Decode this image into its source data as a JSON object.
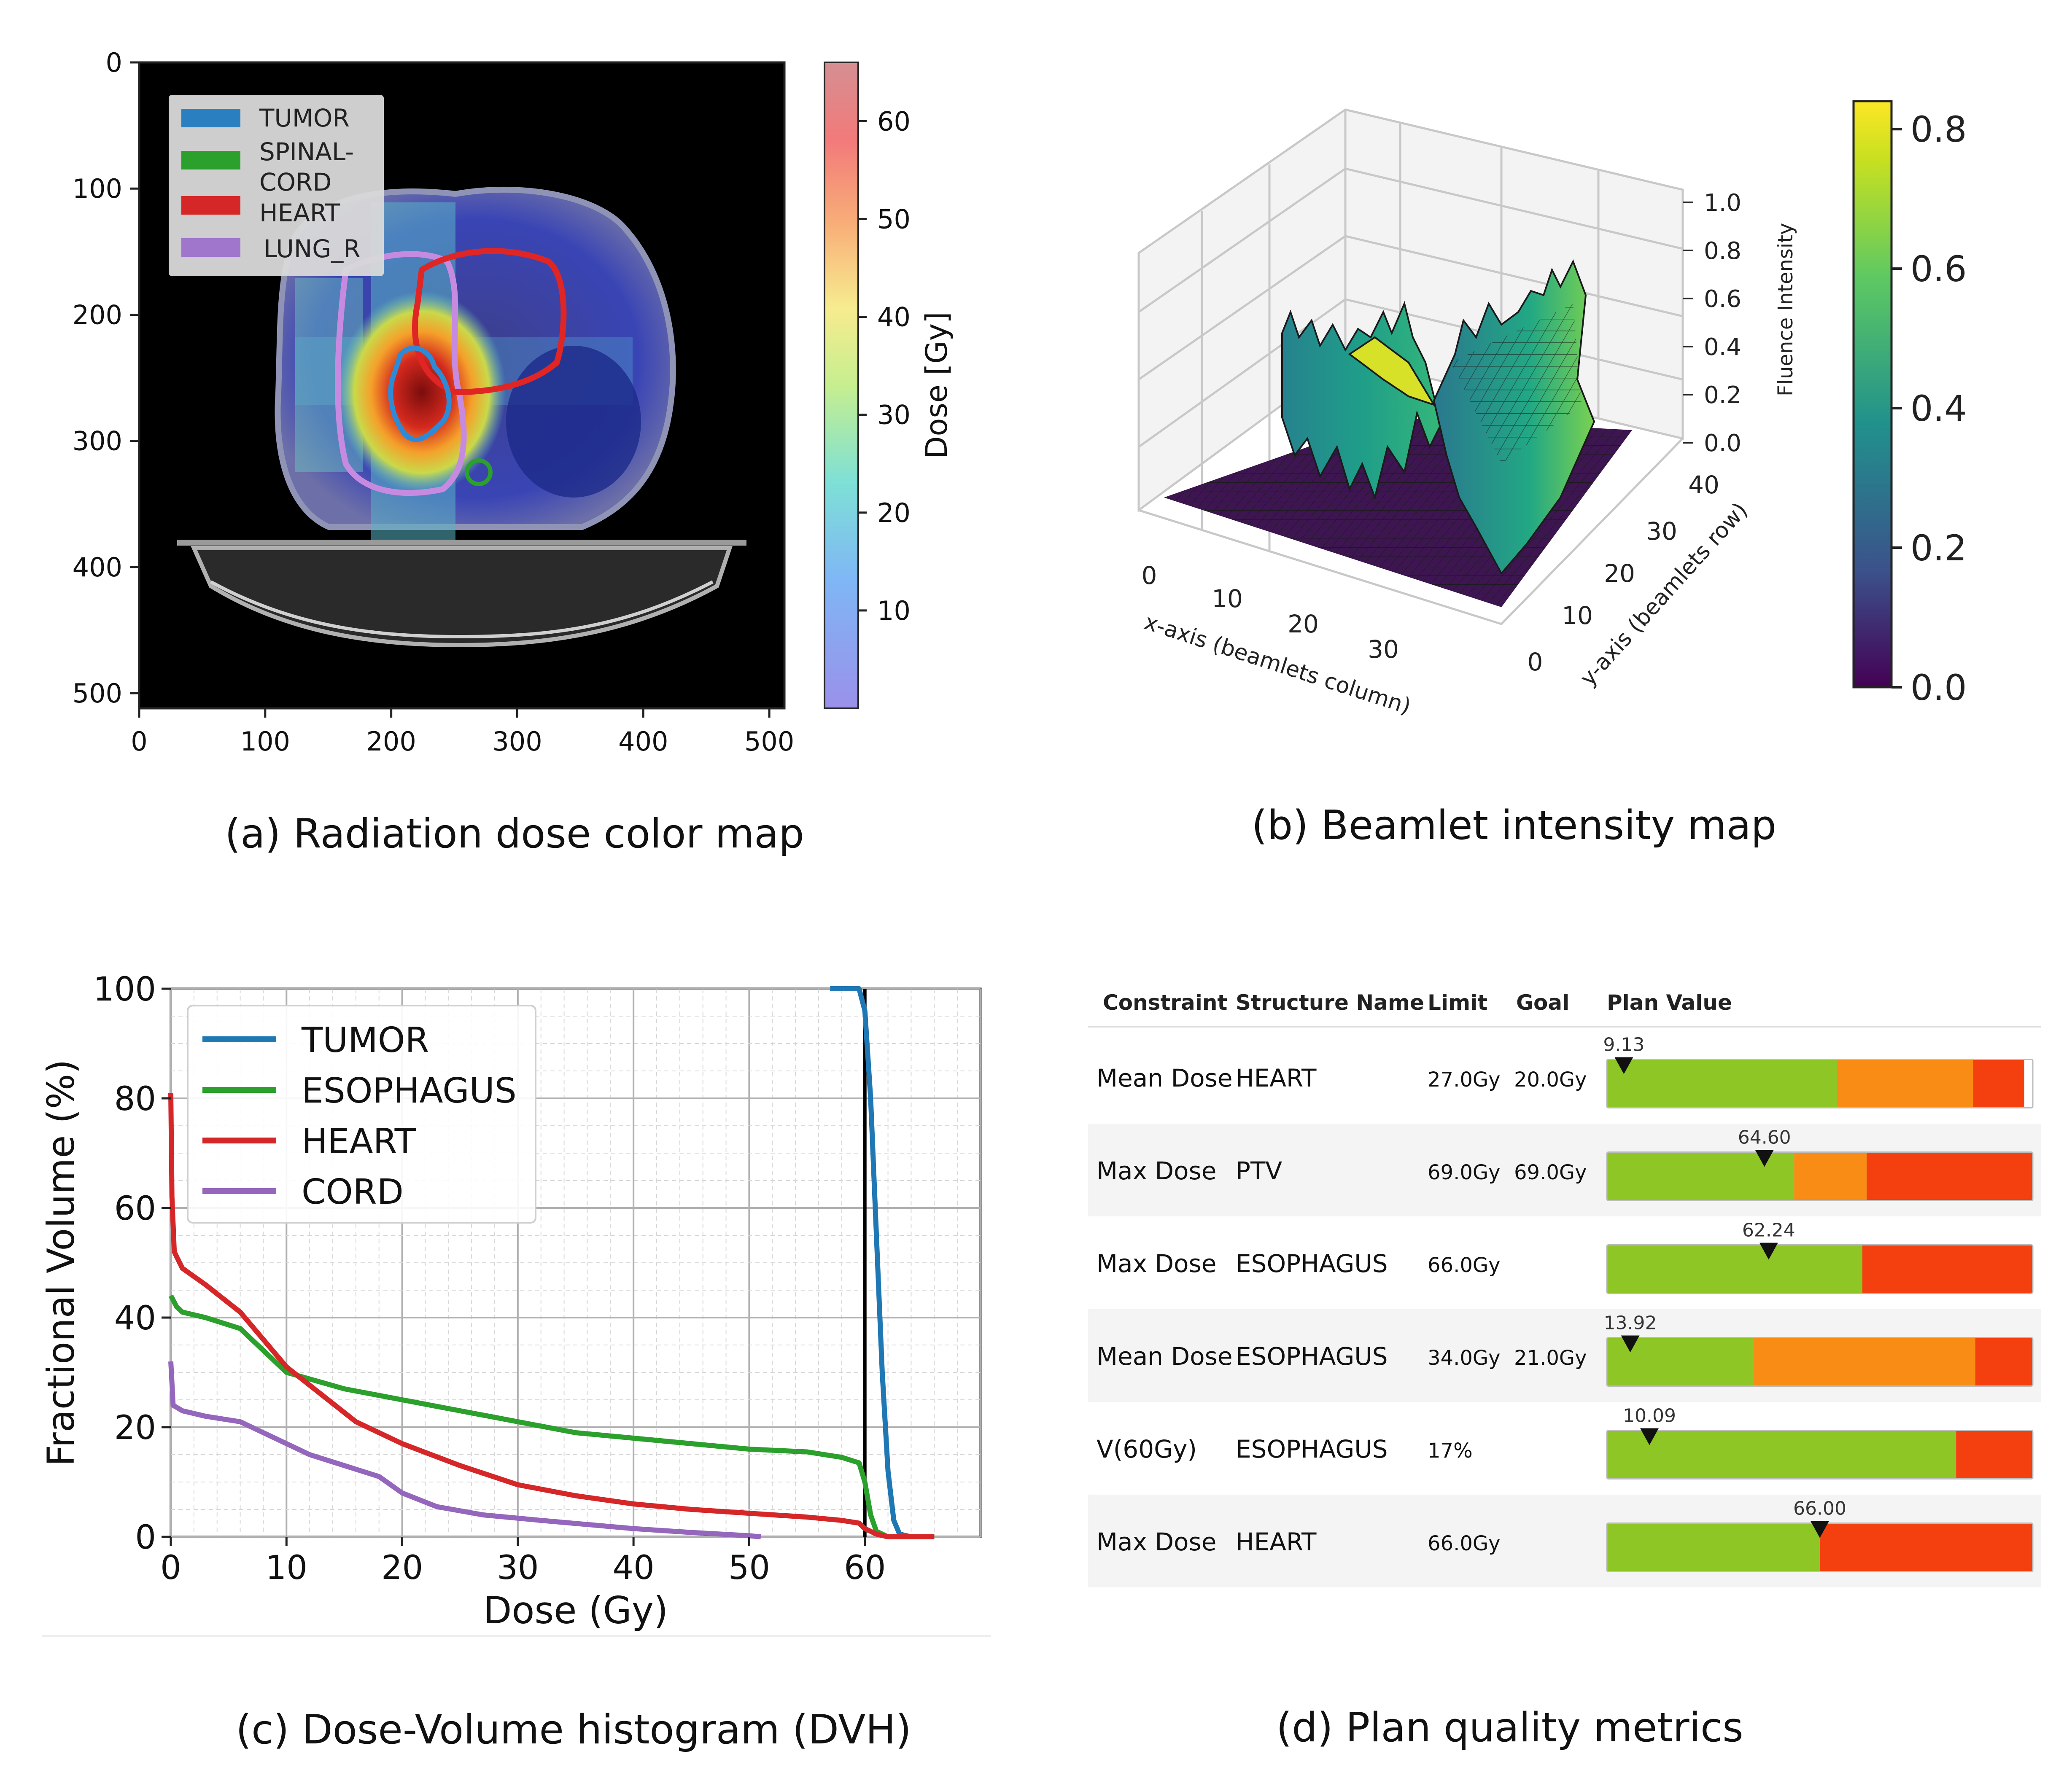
{
  "panels": {
    "a": {
      "caption": "(a) Radiation dose color map",
      "x_ticks": [
        "0",
        "100",
        "200",
        "300",
        "400",
        "500"
      ],
      "y_ticks": [
        "0",
        "100",
        "200",
        "300",
        "400",
        "500"
      ],
      "legend": [
        "TUMOR",
        "SPINAL-",
        "CORD",
        "HEART",
        "LUNG_R"
      ],
      "legend_colors": [
        "#2a7fc1",
        "#2ca02c",
        "#d62728",
        "#9f76cc"
      ],
      "colorbar_label": "Dose [Gy]",
      "colorbar_ticks": [
        "60",
        "50",
        "40",
        "30",
        "20",
        "10"
      ]
    },
    "b": {
      "caption": "(b) Beamlet intensity map",
      "x_axis_label": "x-axis (beamlets column)",
      "y_axis_label": "y-axis (beamlets row)",
      "z_axis_label": "Fluence Intensity",
      "x_ticks": [
        "0",
        "10",
        "20",
        "30"
      ],
      "y_ticks": [
        "0",
        "10",
        "20",
        "30",
        "40"
      ],
      "z_ticks": [
        "1.0",
        "0.8",
        "0.6",
        "0.4",
        "0.2",
        "0.0"
      ],
      "colorbar_ticks": [
        "0.8",
        "0.6",
        "0.4",
        "0.2",
        "0.0"
      ]
    },
    "c": {
      "caption": "(c) Dose-Volume histogram (DVH)"
    },
    "d": {
      "caption": "(d) Plan quality metrics"
    }
  },
  "chart_data": [
    {
      "type": "line",
      "panel": "c",
      "xlabel": "Dose (Gy)",
      "ylabel": "Fractional Volume (%)",
      "xlim": [
        0,
        70
      ],
      "ylim": [
        0,
        100
      ],
      "x_ticks": [
        "0",
        "10",
        "20",
        "30",
        "40",
        "50",
        "60"
      ],
      "y_ticks": [
        "0",
        "20",
        "40",
        "60",
        "80",
        "100"
      ],
      "grid": true,
      "legend_position": "top-left",
      "prescription_dose": 60,
      "series": [
        {
          "name": "TUMOR",
          "color": "#1f77b4",
          "points": [
            [
              57,
              100
            ],
            [
              59.5,
              100
            ],
            [
              60,
              96
            ],
            [
              60.5,
              80
            ],
            [
              61,
              55
            ],
            [
              61.5,
              30
            ],
            [
              62,
              12
            ],
            [
              62.5,
              3
            ],
            [
              63,
              0.5
            ],
            [
              64,
              0
            ],
            [
              66,
              0
            ]
          ]
        },
        {
          "name": "ESOPHAGUS",
          "color": "#2ca02c",
          "points": [
            [
              0,
              44
            ],
            [
              0.5,
              42
            ],
            [
              1,
              41
            ],
            [
              3,
              40
            ],
            [
              6,
              38
            ],
            [
              8,
              34
            ],
            [
              10,
              30
            ],
            [
              15,
              27
            ],
            [
              20,
              25
            ],
            [
              25,
              23
            ],
            [
              30,
              21
            ],
            [
              35,
              19
            ],
            [
              40,
              18
            ],
            [
              45,
              17
            ],
            [
              50,
              16
            ],
            [
              55,
              15.5
            ],
            [
              58,
              14.5
            ],
            [
              59.5,
              13.5
            ],
            [
              60,
              10
            ],
            [
              60.5,
              4
            ],
            [
              61,
              1
            ],
            [
              62,
              0
            ],
            [
              66,
              0
            ]
          ]
        },
        {
          "name": "HEART",
          "color": "#d62728",
          "points": [
            [
              0,
              81
            ],
            [
              0.1,
              62
            ],
            [
              0.3,
              52
            ],
            [
              1,
              49
            ],
            [
              3,
              46
            ],
            [
              6,
              41
            ],
            [
              8,
              36
            ],
            [
              10,
              31
            ],
            [
              13,
              26
            ],
            [
              16,
              21
            ],
            [
              20,
              17
            ],
            [
              25,
              13
            ],
            [
              30,
              9.5
            ],
            [
              35,
              7.5
            ],
            [
              40,
              6
            ],
            [
              45,
              5
            ],
            [
              50,
              4.3
            ],
            [
              55,
              3.6
            ],
            [
              58,
              3
            ],
            [
              59.5,
              2.5
            ],
            [
              60,
              1.5
            ],
            [
              61,
              0.5
            ],
            [
              62,
              0
            ],
            [
              66,
              0
            ]
          ]
        },
        {
          "name": "CORD",
          "color": "#9467bd",
          "points": [
            [
              0,
              32
            ],
            [
              0.2,
              24
            ],
            [
              1,
              23
            ],
            [
              3,
              22
            ],
            [
              6,
              21
            ],
            [
              8,
              19
            ],
            [
              10,
              17
            ],
            [
              12,
              15
            ],
            [
              15,
              13
            ],
            [
              18,
              11
            ],
            [
              20,
              8
            ],
            [
              23,
              5.5
            ],
            [
              27,
              4
            ],
            [
              32,
              3
            ],
            [
              40,
              1.5
            ],
            [
              45,
              0.8
            ],
            [
              50,
              0.2
            ],
            [
              51,
              0
            ]
          ]
        }
      ]
    },
    {
      "type": "table",
      "panel": "d",
      "columns": [
        "Constraint",
        "Structure Name",
        "Limit",
        "Goal",
        "Plan Value"
      ],
      "rows": [
        {
          "constraint": "Mean Dose",
          "structure": "HEART",
          "limit": "27.0Gy",
          "goal": "20.0Gy",
          "value_label": "9.13",
          "marker": 0.04,
          "segments": [
            {
              "frac": 0.54,
              "color": "#8dc625"
            },
            {
              "frac": 0.32,
              "color": "#f98c14"
            },
            {
              "frac": 0.12,
              "color": "#f43f0f"
            }
          ]
        },
        {
          "constraint": "Max Dose",
          "structure": "PTV",
          "limit": "69.0Gy",
          "goal": "69.0Gy",
          "value_label": "64.60",
          "marker": 0.37,
          "segments": [
            {
              "frac": 0.44,
              "color": "#8dc625"
            },
            {
              "frac": 0.17,
              "color": "#f98c14"
            },
            {
              "frac": 0.39,
              "color": "#f43f0f"
            }
          ]
        },
        {
          "constraint": "Max Dose",
          "structure": "ESOPHAGUS",
          "limit": "66.0Gy",
          "goal": "",
          "value_label": "62.24",
          "marker": 0.38,
          "segments": [
            {
              "frac": 0.6,
              "color": "#8dc625"
            },
            {
              "frac": 0.4,
              "color": "#f43f0f"
            }
          ]
        },
        {
          "constraint": "Mean Dose",
          "structure": "ESOPHAGUS",
          "limit": "34.0Gy",
          "goal": "21.0Gy",
          "value_label": "13.92",
          "marker": 0.055,
          "segments": [
            {
              "frac": 0.345,
              "color": "#8dc625"
            },
            {
              "frac": 0.52,
              "color": "#f98c14"
            },
            {
              "frac": 0.135,
              "color": "#f43f0f"
            }
          ]
        },
        {
          "constraint": "V(60Gy)",
          "structure": "ESOPHAGUS",
          "limit": "17%",
          "goal": "",
          "value_label": "10.09",
          "marker": 0.1,
          "segments": [
            {
              "frac": 0.82,
              "color": "#8dc625"
            },
            {
              "frac": 0.18,
              "color": "#f43f0f"
            }
          ]
        },
        {
          "constraint": "Max Dose",
          "structure": "HEART",
          "limit": "66.0Gy",
          "goal": "",
          "value_label": "66.00",
          "marker": 0.5,
          "segments": [
            {
              "frac": 0.5,
              "color": "#8dc625"
            },
            {
              "frac": 0.5,
              "color": "#f43f0f"
            }
          ]
        }
      ]
    }
  ]
}
